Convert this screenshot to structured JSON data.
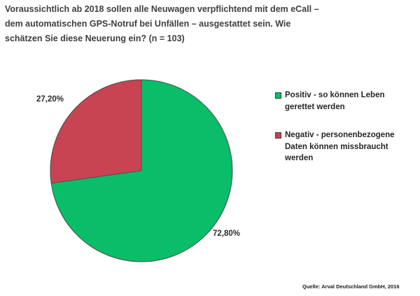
{
  "title": {
    "lines": [
      "Voraussichtlich ab 2018 sollen alle Neuwagen verpflichtend mit dem eCall –",
      "dem automatischen GPS-Notruf bei Unfällen – ausgestattet sein. Wie",
      "schätzen Sie diese Neuerung ein? (n = 103)"
    ]
  },
  "legend": {
    "items": [
      {
        "key": "positiv",
        "color": "#0abd69",
        "lines": [
          "Positiv - so können Leben",
          "gerettet werden"
        ]
      },
      {
        "key": "negativ",
        "color": "#c84452",
        "lines": [
          "Negativ - personenbezogene",
          "Daten können missbraucht",
          "werden"
        ]
      }
    ]
  },
  "source": "Quelle: Arval Deutschland GmbH, 2016",
  "chart_data": {
    "type": "pie",
    "title": "Voraussichtlich ab 2018 sollen alle Neuwagen verpflichtend mit dem eCall – dem automatischen GPS-Notruf bei Unfällen – ausgestattet sein. Wie schätzen Sie diese Neuerung ein? (n = 103)",
    "labels": [
      "Positiv - so können Leben gerettet werden",
      "Negativ - personenbezogene Daten können missbraucht werden"
    ],
    "values": [
      72.8,
      27.2
    ],
    "value_labels": [
      "72,80%",
      "27,20%"
    ],
    "colors": [
      "#0abd69",
      "#c84452"
    ],
    "outline_color": "#4d4d4d",
    "start_angle_deg": 0,
    "direction": "clockwise",
    "legend_position": "right",
    "source": "Quelle: Arval Deutschland GmbH, 2016"
  }
}
